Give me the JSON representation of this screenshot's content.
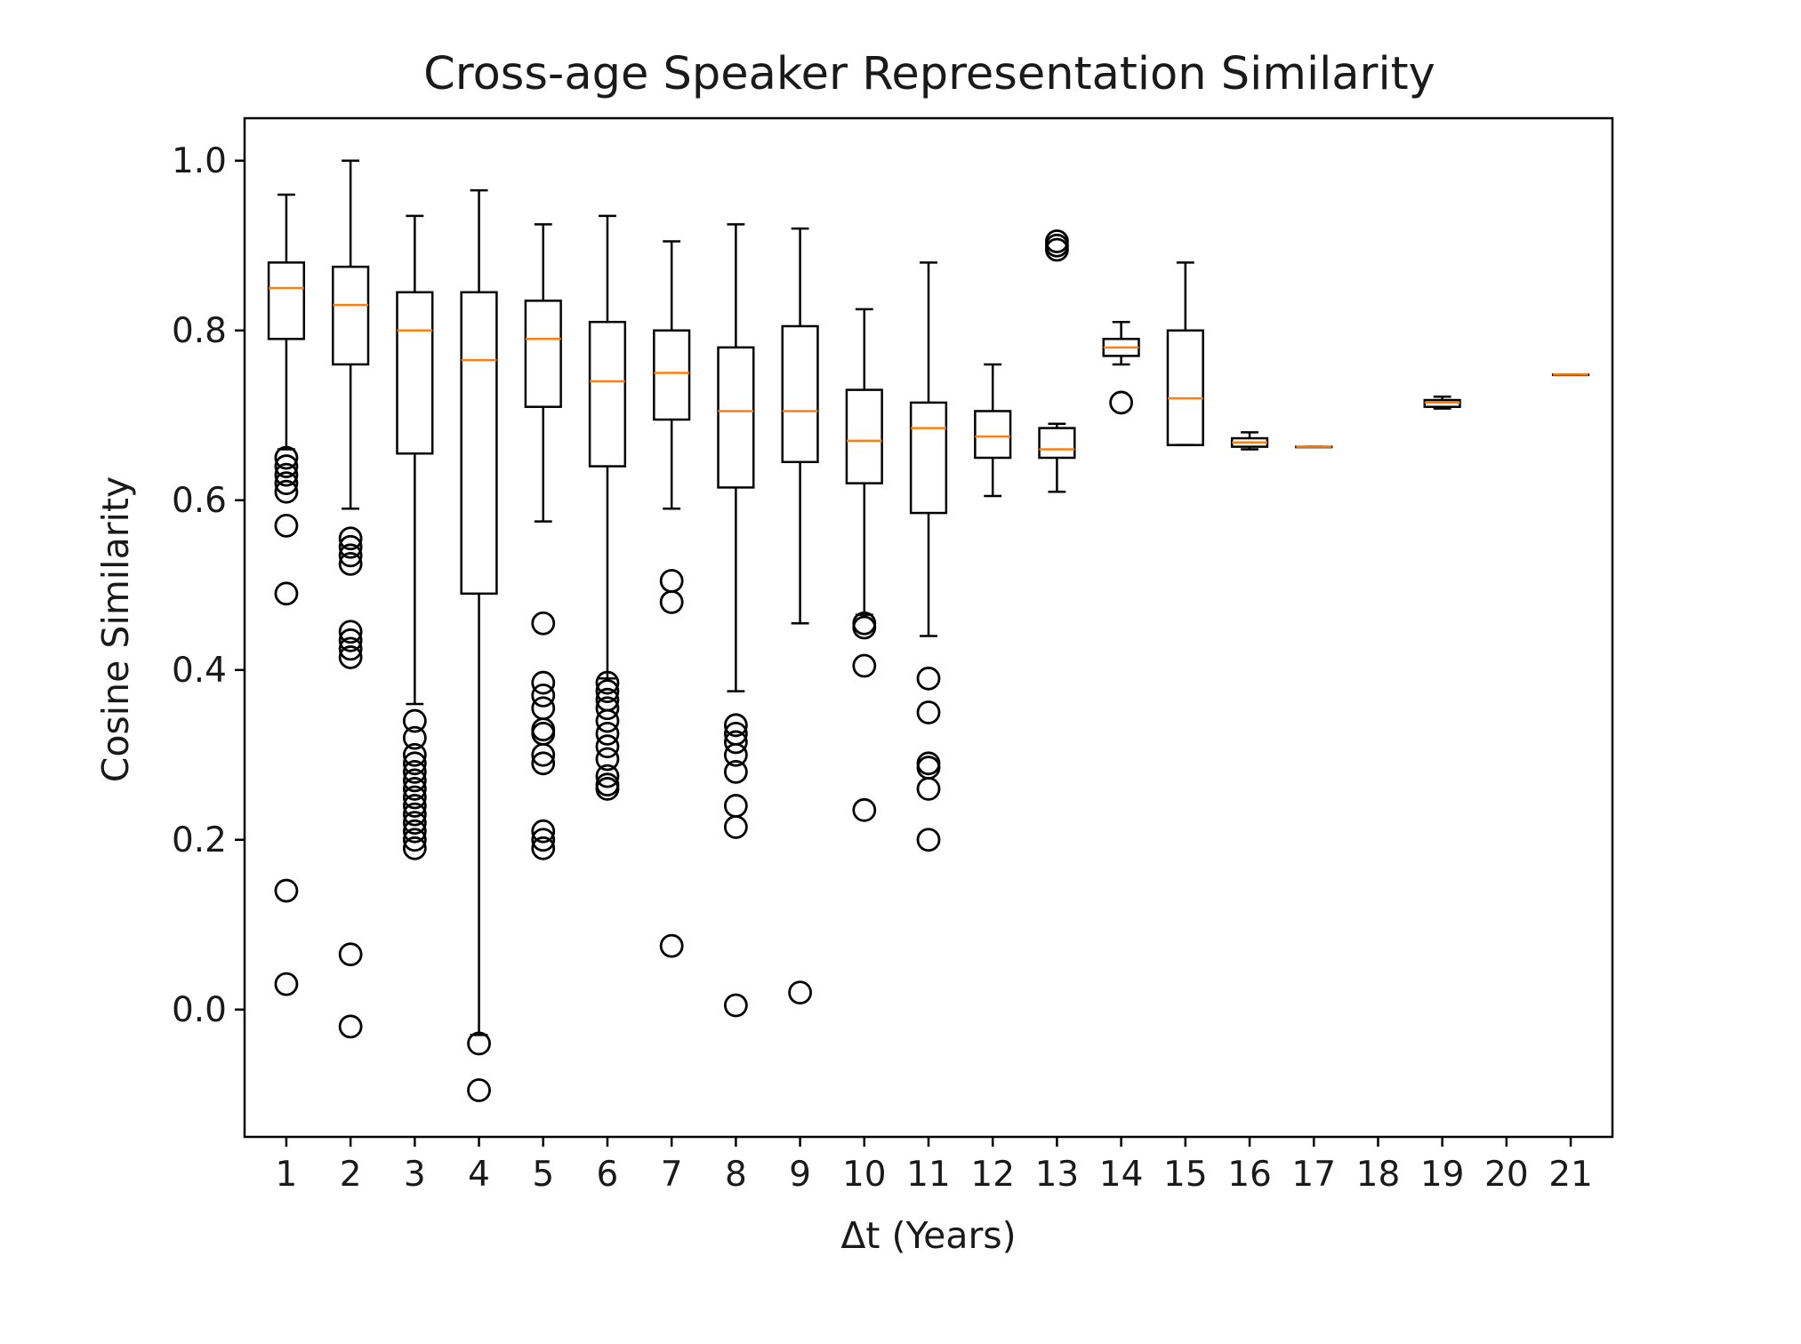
{
  "chart_data": {
    "type": "boxplot",
    "title": "Cross-age Speaker Representation Similarity",
    "xlabel": "Δt (Years)",
    "ylabel": "Cosine Similarity",
    "ylim": [
      -0.15,
      1.05
    ],
    "yticks": [
      "0.0",
      "0.2",
      "0.4",
      "0.6",
      "0.8",
      "1.0"
    ],
    "grid": false,
    "legend": "none",
    "colors": {
      "box": "#000000",
      "median": "#ff7f0e",
      "flier": "#000000"
    },
    "categories": [
      "1",
      "2",
      "3",
      "4",
      "5",
      "6",
      "7",
      "8",
      "9",
      "10",
      "11",
      "12",
      "13",
      "14",
      "15",
      "16",
      "17",
      "18",
      "19",
      "20",
      "21"
    ],
    "boxes": [
      {
        "x": "1",
        "whislo": 0.66,
        "q1": 0.79,
        "med": 0.85,
        "q3": 0.88,
        "whishi": 0.96,
        "fliers": [
          0.65,
          0.64,
          0.63,
          0.62,
          0.61,
          0.57,
          0.49,
          0.14,
          0.03
        ]
      },
      {
        "x": "2",
        "whislo": 0.59,
        "q1": 0.76,
        "med": 0.83,
        "q3": 0.875,
        "whishi": 1.0,
        "fliers": [
          0.555,
          0.545,
          0.535,
          0.525,
          0.445,
          0.435,
          0.425,
          0.415,
          0.065,
          -0.02
        ]
      },
      {
        "x": "3",
        "whislo": 0.36,
        "q1": 0.655,
        "med": 0.8,
        "q3": 0.845,
        "whishi": 0.935,
        "fliers": [
          0.34,
          0.32,
          0.3,
          0.29,
          0.28,
          0.27,
          0.26,
          0.25,
          0.24,
          0.23,
          0.22,
          0.21,
          0.2,
          0.19
        ]
      },
      {
        "x": "4",
        "whislo": -0.03,
        "q1": 0.49,
        "med": 0.765,
        "q3": 0.845,
        "whishi": 0.965,
        "fliers": [
          -0.04,
          -0.095
        ]
      },
      {
        "x": "5",
        "whislo": 0.575,
        "q1": 0.71,
        "med": 0.79,
        "q3": 0.835,
        "whishi": 0.925,
        "fliers": [
          0.455,
          0.385,
          0.37,
          0.355,
          0.33,
          0.325,
          0.3,
          0.29,
          0.21,
          0.2,
          0.19
        ]
      },
      {
        "x": "6",
        "whislo": 0.39,
        "q1": 0.64,
        "med": 0.74,
        "q3": 0.81,
        "whishi": 0.935,
        "fliers": [
          0.385,
          0.375,
          0.365,
          0.355,
          0.34,
          0.325,
          0.31,
          0.295,
          0.275,
          0.265,
          0.26
        ]
      },
      {
        "x": "7",
        "whislo": 0.59,
        "q1": 0.695,
        "med": 0.75,
        "q3": 0.8,
        "whishi": 0.905,
        "fliers": [
          0.505,
          0.48,
          0.075
        ]
      },
      {
        "x": "8",
        "whislo": 0.375,
        "q1": 0.615,
        "med": 0.705,
        "q3": 0.78,
        "whishi": 0.925,
        "fliers": [
          0.335,
          0.325,
          0.315,
          0.3,
          0.28,
          0.24,
          0.215,
          0.005
        ]
      },
      {
        "x": "9",
        "whislo": 0.455,
        "q1": 0.645,
        "med": 0.705,
        "q3": 0.805,
        "whishi": 0.92,
        "fliers": [
          0.02
        ]
      },
      {
        "x": "10",
        "whislo": 0.465,
        "q1": 0.62,
        "med": 0.67,
        "q3": 0.73,
        "whishi": 0.825,
        "fliers": [
          0.455,
          0.45,
          0.405,
          0.235
        ]
      },
      {
        "x": "11",
        "whislo": 0.44,
        "q1": 0.585,
        "med": 0.685,
        "q3": 0.715,
        "whishi": 0.88,
        "fliers": [
          0.39,
          0.35,
          0.29,
          0.285,
          0.26,
          0.2
        ]
      },
      {
        "x": "12",
        "whislo": 0.605,
        "q1": 0.65,
        "med": 0.675,
        "q3": 0.705,
        "whishi": 0.76,
        "fliers": []
      },
      {
        "x": "13",
        "whislo": 0.61,
        "q1": 0.65,
        "med": 0.66,
        "q3": 0.685,
        "whishi": 0.69,
        "fliers": [
          0.905,
          0.9,
          0.895
        ]
      },
      {
        "x": "14",
        "whislo": 0.76,
        "q1": 0.77,
        "med": 0.78,
        "q3": 0.79,
        "whishi": 0.81,
        "fliers": [
          0.715
        ]
      },
      {
        "x": "15",
        "whislo": 0.665,
        "q1": 0.665,
        "med": 0.72,
        "q3": 0.8,
        "whishi": 0.88,
        "fliers": []
      },
      {
        "x": "16",
        "whislo": 0.66,
        "q1": 0.663,
        "med": 0.668,
        "q3": 0.673,
        "whishi": 0.68,
        "fliers": []
      },
      {
        "x": "17",
        "whislo": 0.663,
        "q1": 0.663,
        "med": 0.663,
        "q3": 0.663,
        "whishi": 0.663,
        "fliers": []
      },
      {
        "x": "19",
        "whislo": 0.708,
        "q1": 0.71,
        "med": 0.715,
        "q3": 0.718,
        "whishi": 0.722,
        "fliers": []
      },
      {
        "x": "21",
        "whislo": 0.748,
        "q1": 0.748,
        "med": 0.748,
        "q3": 0.748,
        "whishi": 0.748,
        "fliers": []
      }
    ]
  }
}
